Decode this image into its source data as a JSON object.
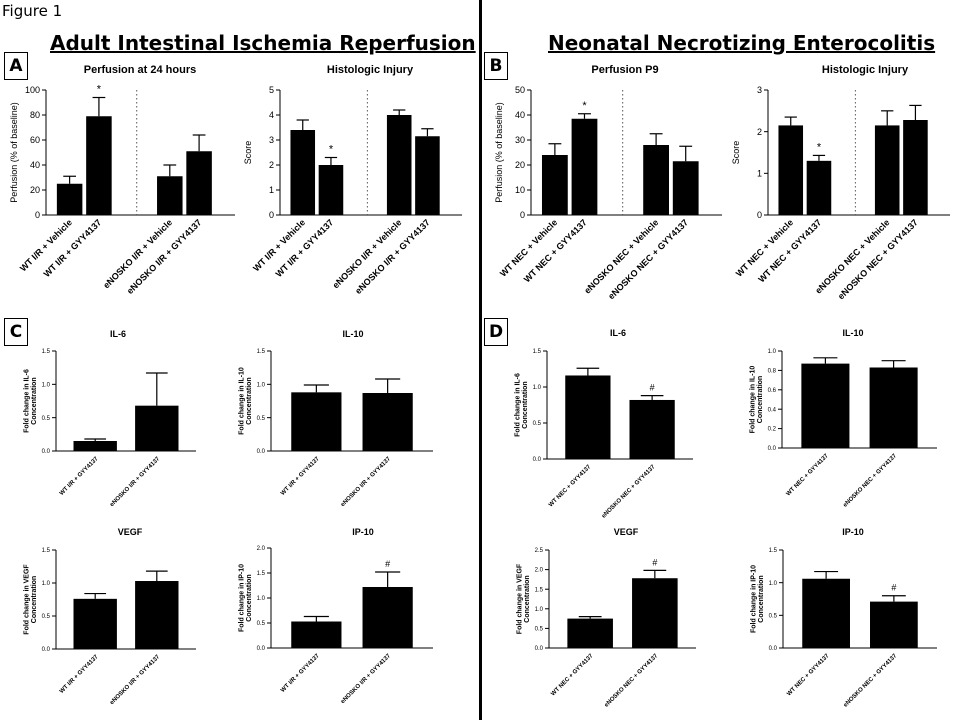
{
  "figure_label": "Figure 1",
  "headings": {
    "left": "Adult Intestinal Ischemia Reperfusion",
    "right": "Neonatal Necrotizing Enterocolitis"
  },
  "panel_labels": [
    "A",
    "B",
    "C",
    "D"
  ],
  "chart_data": [
    {
      "id": "A1",
      "type": "bar",
      "title": "Perfusion at 24 hours",
      "ylabel": "Perfusion (% of baseline)",
      "categories": [
        "WT I/R + Vehicle",
        "WT I/R + GYY4137",
        "eNOSKO I/R + Vehicle",
        "eNOSKO I/R + GYY4137"
      ],
      "values": [
        25,
        79,
        31,
        51
      ],
      "errors": [
        6,
        15,
        9,
        13
      ],
      "annotations": [
        "",
        "*",
        "",
        ""
      ],
      "ylim": [
        0,
        100
      ],
      "yticks": [
        "0",
        "20",
        "40",
        "60",
        "80",
        "100"
      ],
      "separator": true
    },
    {
      "id": "A2",
      "type": "bar",
      "title": "Histologic Injury",
      "ylabel": "Score",
      "categories": [
        "WT I/R + Vehicle",
        "WT I/R + GYY4137",
        "eNOSKO I/R + Vehicle",
        "eNOSKO I/R + GYY4137"
      ],
      "values": [
        3.4,
        2.0,
        4.0,
        3.15
      ],
      "errors": [
        0.4,
        0.3,
        0.2,
        0.3
      ],
      "annotations": [
        "",
        "*",
        "",
        ""
      ],
      "ylim": [
        0,
        5
      ],
      "yticks": [
        "0",
        "1",
        "2",
        "3",
        "4",
        "5"
      ],
      "separator": true
    },
    {
      "id": "B1",
      "type": "bar",
      "title": "Perfusion P9",
      "ylabel": "Perfusion (% of baseline)",
      "categories": [
        "WT NEC + Vehicle",
        "WT NEC + GYY4137",
        "eNOSKO NEC + Vehicle",
        "eNOSKO NEC + GYY4137"
      ],
      "values": [
        24,
        38.5,
        28,
        21.5
      ],
      "errors": [
        4.5,
        2,
        4.5,
        6
      ],
      "annotations": [
        "",
        "*",
        "",
        ""
      ],
      "ylim": [
        0,
        50
      ],
      "yticks": [
        "0",
        "10",
        "20",
        "30",
        "40",
        "50"
      ],
      "separator": true
    },
    {
      "id": "B2",
      "type": "bar",
      "title": "Histologic Injury",
      "ylabel": "Score",
      "categories": [
        "WT NEC + Vehicle",
        "WT NEC + GYY4137",
        "eNOSKO NEC + Vehicle",
        "eNOSKO NEC + GYY4137"
      ],
      "values": [
        2.15,
        1.3,
        2.15,
        2.28
      ],
      "errors": [
        0.2,
        0.13,
        0.35,
        0.35
      ],
      "annotations": [
        "",
        "*",
        "",
        ""
      ],
      "ylim": [
        0,
        3
      ],
      "yticks": [
        "0",
        "1",
        "2",
        "3"
      ],
      "separator": true
    },
    {
      "id": "C1",
      "type": "bar",
      "title": "IL-6",
      "ylabel": "Fold change in IL-6 Concentration",
      "categories": [
        "WT I/R + GYY4137",
        "eNOSKO I/R + GYY4137"
      ],
      "values": [
        0.15,
        0.68
      ],
      "errors": [
        0.03,
        0.49
      ],
      "annotations": [
        "",
        ""
      ],
      "ylim": [
        0,
        1.5
      ],
      "yticks": [
        "0.0",
        "0.5",
        "1.0",
        "1.5"
      ],
      "separator": false
    },
    {
      "id": "C2",
      "type": "bar",
      "title": "IL-10",
      "ylabel": "Fold change in IL-10 Concentration",
      "categories": [
        "WT I/R + GYY4137",
        "eNOSKO I/R + GYY4137"
      ],
      "values": [
        0.88,
        0.87
      ],
      "errors": [
        0.11,
        0.21
      ],
      "annotations": [
        "",
        ""
      ],
      "ylim": [
        0,
        1.5
      ],
      "yticks": [
        "0.0",
        "0.5",
        "1.0",
        "1.5"
      ],
      "separator": false
    },
    {
      "id": "C3",
      "type": "bar",
      "title": "VEGF",
      "ylabel": "Fold change in VEGF Concentration",
      "categories": [
        "WT I/R + GYY4137",
        "eNOSKO I/R + GYY4137"
      ],
      "values": [
        0.76,
        1.03
      ],
      "errors": [
        0.08,
        0.15
      ],
      "annotations": [
        "",
        ""
      ],
      "ylim": [
        0,
        1.5
      ],
      "yticks": [
        "0.0",
        "0.5",
        "1.0",
        "1.5"
      ],
      "separator": false
    },
    {
      "id": "C4",
      "type": "bar",
      "title": "IP-10",
      "ylabel": "Fold change in IP-10 Concentration",
      "categories": [
        "WT I/R + GYY4137",
        "eNOSKO I/R + GYY4137"
      ],
      "values": [
        0.53,
        1.22
      ],
      "errors": [
        0.1,
        0.3
      ],
      "annotations": [
        "",
        "#"
      ],
      "ylim": [
        0,
        2.0
      ],
      "yticks": [
        "0.0",
        "0.5",
        "1.0",
        "1.5",
        "2.0"
      ],
      "separator": false
    },
    {
      "id": "D1",
      "type": "bar",
      "title": "IL-6",
      "ylabel": "Fold change in IL-6 Concentration",
      "categories": [
        "WT NEC + GYY4137",
        "eNOSKO NEC + GYY4137"
      ],
      "values": [
        1.16,
        0.82
      ],
      "errors": [
        0.1,
        0.06
      ],
      "annotations": [
        "",
        "#"
      ],
      "ylim": [
        0,
        1.5
      ],
      "yticks": [
        "0.0",
        "0.5",
        "1.0",
        "1.5"
      ],
      "separator": false
    },
    {
      "id": "D2",
      "type": "bar",
      "title": "IL-10",
      "ylabel": "Fold change in IL-10 Concentration",
      "categories": [
        "WT NEC + GYY4137",
        "eNOSKO NEC + GYY4137"
      ],
      "values": [
        0.87,
        0.83
      ],
      "errors": [
        0.06,
        0.07
      ],
      "annotations": [
        "",
        ""
      ],
      "ylim": [
        0,
        1.0
      ],
      "yticks": [
        "0.0",
        "0.2",
        "0.4",
        "0.6",
        "0.8",
        "1.0"
      ],
      "separator": false
    },
    {
      "id": "D3",
      "type": "bar",
      "title": "VEGF",
      "ylabel": "Fold change in VEGF Concentration",
      "categories": [
        "WT NEC + GYY4137",
        "eNOSKO NEC + GYY4137"
      ],
      "values": [
        0.75,
        1.78
      ],
      "errors": [
        0.05,
        0.2
      ],
      "annotations": [
        "",
        "#"
      ],
      "ylim": [
        0,
        2.5
      ],
      "yticks": [
        "0.0",
        "0.5",
        "1.0",
        "1.5",
        "2.0",
        "2.5"
      ],
      "separator": false
    },
    {
      "id": "D4",
      "type": "bar",
      "title": "IP-10",
      "ylabel": "Fold change in IP-10 Concentration",
      "categories": [
        "WT NEC + GYY4137",
        "eNOSKO NEC + GYY4137"
      ],
      "values": [
        1.06,
        0.71
      ],
      "errors": [
        0.11,
        0.09
      ],
      "annotations": [
        "",
        "#"
      ],
      "ylim": [
        0,
        1.5
      ],
      "yticks": [
        "0.0",
        "0.5",
        "1.0",
        "1.5"
      ],
      "separator": false
    }
  ]
}
